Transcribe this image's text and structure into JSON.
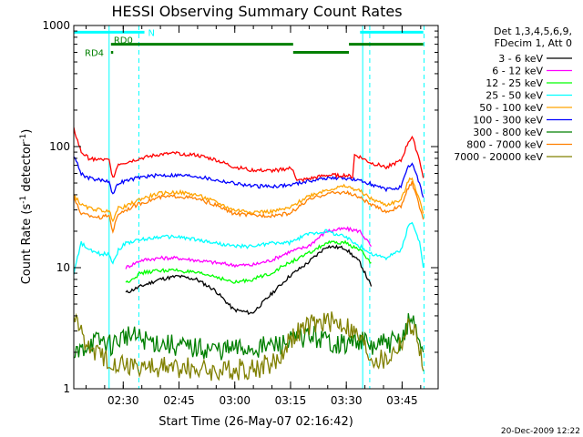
{
  "chart_data": {
    "type": "line",
    "title": "HESSI Observing Summary Count Rates",
    "xlabel": "Start Time (26-May-07 02:16:42)",
    "ylabel": {
      "main": "Count Rate (s",
      "sup1": "-1",
      "mid": " detector",
      "sup2": "-1",
      "end": ")"
    },
    "x_unit": "minutes after 02:16:42 UT",
    "xlim": [
      0,
      98
    ],
    "ylim": [
      1,
      1000
    ],
    "yscale": "log",
    "x_ticks": [
      {
        "x": 13.3,
        "label": "02:30"
      },
      {
        "x": 28.3,
        "label": "02:45"
      },
      {
        "x": 43.3,
        "label": "03:00"
      },
      {
        "x": 58.3,
        "label": "03:15"
      },
      {
        "x": 73.3,
        "label": "03:30"
      },
      {
        "x": 88.3,
        "label": "03:45"
      }
    ],
    "y_ticks": [
      {
        "y": 1,
        "label": "1"
      },
      {
        "y": 10,
        "label": "10"
      },
      {
        "y": 100,
        "label": "100"
      },
      {
        "y": 1000,
        "label": "1000"
      }
    ],
    "legend": {
      "placement": "right",
      "header": [
        "Det 1,3,4,5,6,9,",
        "FDecim 1, Att 0"
      ]
    },
    "flags": [
      {
        "label": "N",
        "color": "#00ffff",
        "y": 880,
        "segments": [
          [
            0,
            19
          ],
          [
            77,
            94
          ]
        ]
      },
      {
        "label": "RD0",
        "color": "#007f00",
        "y": 700,
        "segments": [
          [
            10,
            59
          ]
        ]
      },
      {
        "label": "RD4",
        "color": "#007f00",
        "y": 600,
        "segments": [
          [
            59,
            74
          ],
          [
            10,
            10.6
          ]
        ]
      },
      {
        "label": "",
        "color": "#007f00",
        "y": 700,
        "segments": [
          [
            74,
            94
          ]
        ]
      }
    ],
    "vlines": [
      {
        "x": 9.5,
        "color": "#00ffff",
        "dashed": false
      },
      {
        "x": 17.5,
        "color": "#00ffff",
        "dashed": true
      },
      {
        "x": 77.7,
        "color": "#00ffff",
        "dashed": false
      },
      {
        "x": 79.6,
        "color": "#00ffff",
        "dashed": true
      },
      {
        "x": 94.2,
        "color": "#00ffff",
        "dashed": true
      }
    ],
    "series": [
      {
        "name": "3 - 6 keV",
        "color": "#000000",
        "points": [
          [
            14,
            6.2
          ],
          [
            18,
            7
          ],
          [
            23,
            8
          ],
          [
            28,
            8.5
          ],
          [
            33,
            8
          ],
          [
            38,
            6.5
          ],
          [
            43,
            4.5
          ],
          [
            48,
            4.2
          ],
          [
            53,
            6
          ],
          [
            58,
            8.5
          ],
          [
            63,
            11
          ],
          [
            68,
            15
          ],
          [
            73,
            14.5
          ],
          [
            77,
            11
          ],
          [
            80,
            7
          ]
        ]
      },
      {
        "name": "6 - 12 keV",
        "color": "#ff00ff",
        "points": [
          [
            14,
            10
          ],
          [
            18,
            11.5
          ],
          [
            23,
            12
          ],
          [
            28,
            12
          ],
          [
            33,
            11.5
          ],
          [
            38,
            11
          ],
          [
            43,
            10.5
          ],
          [
            48,
            10.5
          ],
          [
            53,
            11.5
          ],
          [
            58,
            13.5
          ],
          [
            63,
            15
          ],
          [
            68,
            20
          ],
          [
            73,
            21
          ],
          [
            77,
            20
          ],
          [
            80,
            15
          ]
        ]
      },
      {
        "name": "12 - 25 keV",
        "color": "#00ff00",
        "points": [
          [
            14,
            7.5
          ],
          [
            18,
            9
          ],
          [
            23,
            9.5
          ],
          [
            28,
            9.5
          ],
          [
            33,
            9
          ],
          [
            38,
            8.5
          ],
          [
            43,
            7.5
          ],
          [
            48,
            8
          ],
          [
            53,
            9
          ],
          [
            58,
            11
          ],
          [
            63,
            13
          ],
          [
            68,
            16
          ],
          [
            73,
            16
          ],
          [
            77,
            14
          ],
          [
            80,
            11
          ]
        ]
      },
      {
        "name": "25 - 50 keV",
        "color": "#00ffff",
        "points": [
          [
            0,
            9
          ],
          [
            2,
            16
          ],
          [
            4,
            14
          ],
          [
            7,
            13
          ],
          [
            9.5,
            13
          ],
          [
            10.5,
            11
          ],
          [
            12,
            14
          ],
          [
            14,
            16
          ],
          [
            18,
            17
          ],
          [
            23,
            18
          ],
          [
            28,
            18
          ],
          [
            33,
            17
          ],
          [
            38,
            16
          ],
          [
            43,
            15
          ],
          [
            48,
            15
          ],
          [
            53,
            16
          ],
          [
            58,
            16
          ],
          [
            63,
            19
          ],
          [
            68,
            20
          ],
          [
            73,
            18
          ],
          [
            77,
            15
          ],
          [
            80,
            13
          ],
          [
            84,
            12
          ],
          [
            88,
            14
          ],
          [
            90,
            22
          ],
          [
            91,
            24
          ],
          [
            93,
            16
          ],
          [
            94,
            10
          ]
        ]
      },
      {
        "name": "50 - 100 keV",
        "color": "#ffa500",
        "points": [
          [
            0,
            40
          ],
          [
            2,
            33
          ],
          [
            4,
            31
          ],
          [
            7,
            30
          ],
          [
            9.5,
            29
          ],
          [
            10.5,
            25
          ],
          [
            12,
            31
          ],
          [
            14,
            32
          ],
          [
            18,
            37
          ],
          [
            23,
            41
          ],
          [
            28,
            42
          ],
          [
            33,
            40
          ],
          [
            38,
            35
          ],
          [
            43,
            30
          ],
          [
            48,
            29
          ],
          [
            53,
            29
          ],
          [
            58,
            31
          ],
          [
            63,
            39
          ],
          [
            68,
            44
          ],
          [
            73,
            47
          ],
          [
            77,
            43
          ],
          [
            80,
            37
          ],
          [
            84,
            33
          ],
          [
            88,
            36
          ],
          [
            90,
            52
          ],
          [
            91,
            55
          ],
          [
            93,
            36
          ],
          [
            94,
            28
          ]
        ]
      },
      {
        "name": "100 - 300 keV",
        "color": "#0000ff",
        "points": [
          [
            0,
            85
          ],
          [
            2,
            60
          ],
          [
            4,
            55
          ],
          [
            7,
            53
          ],
          [
            9.5,
            52
          ],
          [
            10.5,
            40
          ],
          [
            12,
            50
          ],
          [
            14,
            52
          ],
          [
            18,
            56
          ],
          [
            23,
            58
          ],
          [
            28,
            58
          ],
          [
            33,
            57
          ],
          [
            38,
            53
          ],
          [
            43,
            50
          ],
          [
            48,
            47
          ],
          [
            53,
            47
          ],
          [
            58,
            48
          ],
          [
            63,
            52
          ],
          [
            68,
            55
          ],
          [
            73,
            55
          ],
          [
            77,
            52
          ],
          [
            80,
            49
          ],
          [
            84,
            44
          ],
          [
            88,
            46
          ],
          [
            90,
            68
          ],
          [
            91,
            72
          ],
          [
            93,
            50
          ],
          [
            94,
            38
          ]
        ]
      },
      {
        "name": "300 - 800 keV",
        "color": "#007f00",
        "points": [
          [
            0,
            1.8
          ],
          [
            4,
            2.4
          ],
          [
            8,
            2.5
          ],
          [
            10,
            2.3
          ],
          [
            14,
            2.8
          ],
          [
            20,
            2.5
          ],
          [
            30,
            2.2
          ],
          [
            40,
            2.1
          ],
          [
            50,
            2.2
          ],
          [
            58,
            2.4
          ],
          [
            63,
            2.8
          ],
          [
            68,
            2.5
          ],
          [
            73,
            2.3
          ],
          [
            77,
            2.6
          ],
          [
            80,
            2.2
          ],
          [
            84,
            2.4
          ],
          [
            88,
            2.5
          ],
          [
            90,
            3.5
          ],
          [
            91,
            3.8
          ],
          [
            93,
            2.6
          ],
          [
            94,
            2
          ]
        ]
      },
      {
        "name": "800 - 7000 keV",
        "color": "#ff8000",
        "points": [
          [
            0,
            38
          ],
          [
            2,
            28
          ],
          [
            4,
            27
          ],
          [
            7,
            26
          ],
          [
            9.5,
            27
          ],
          [
            10.5,
            20
          ],
          [
            12,
            28
          ],
          [
            14,
            30
          ],
          [
            18,
            34
          ],
          [
            23,
            38
          ],
          [
            28,
            39
          ],
          [
            33,
            37
          ],
          [
            38,
            33
          ],
          [
            43,
            28
          ],
          [
            48,
            27
          ],
          [
            53,
            27
          ],
          [
            58,
            28
          ],
          [
            63,
            36
          ],
          [
            68,
            41
          ],
          [
            73,
            42
          ],
          [
            77,
            38
          ],
          [
            80,
            33
          ],
          [
            84,
            29
          ],
          [
            88,
            32
          ],
          [
            90,
            46
          ],
          [
            91,
            50
          ],
          [
            93,
            32
          ],
          [
            94,
            25
          ]
        ]
      },
      {
        "name": "7000 - 20000 keV",
        "color": "#808000",
        "points": [
          [
            0,
            4
          ],
          [
            4,
            2.2
          ],
          [
            8,
            1.8
          ],
          [
            14,
            1.6
          ],
          [
            20,
            1.5
          ],
          [
            30,
            1.5
          ],
          [
            40,
            1.4
          ],
          [
            50,
            1.5
          ],
          [
            55,
            1.7
          ],
          [
            58,
            2.6
          ],
          [
            63,
            3.3
          ],
          [
            68,
            3.6
          ],
          [
            73,
            3.4
          ],
          [
            77,
            2.6
          ],
          [
            80,
            1.8
          ],
          [
            84,
            1.7
          ],
          [
            88,
            2.4
          ],
          [
            90,
            3.2
          ],
          [
            91,
            3.4
          ],
          [
            93,
            2.2
          ],
          [
            94,
            1.4
          ]
        ]
      },
      {
        "name": "",
        "color": "#ff0000",
        "points": [
          [
            0,
            140
          ],
          [
            2,
            90
          ],
          [
            4,
            80
          ],
          [
            7,
            78
          ],
          [
            9.5,
            77
          ],
          [
            10.5,
            55
          ],
          [
            12,
            72
          ],
          [
            14,
            74
          ],
          [
            18,
            80
          ],
          [
            23,
            86
          ],
          [
            28,
            88
          ],
          [
            33,
            85
          ],
          [
            38,
            78
          ],
          [
            43,
            68
          ],
          [
            48,
            64
          ],
          [
            53,
            63
          ],
          [
            58,
            66
          ],
          [
            59,
            65
          ],
          [
            60,
            52
          ],
          [
            63,
            54
          ],
          [
            68,
            58
          ],
          [
            73,
            58
          ],
          [
            75,
            56
          ],
          [
            75.5,
            85
          ],
          [
            77,
            82
          ],
          [
            80,
            73
          ],
          [
            84,
            68
          ],
          [
            88,
            76
          ],
          [
            90,
            110
          ],
          [
            91,
            120
          ],
          [
            93,
            78
          ],
          [
            94,
            55
          ]
        ]
      }
    ]
  },
  "footer": {
    "timestamp": "20-Dec-2009 12:22"
  }
}
